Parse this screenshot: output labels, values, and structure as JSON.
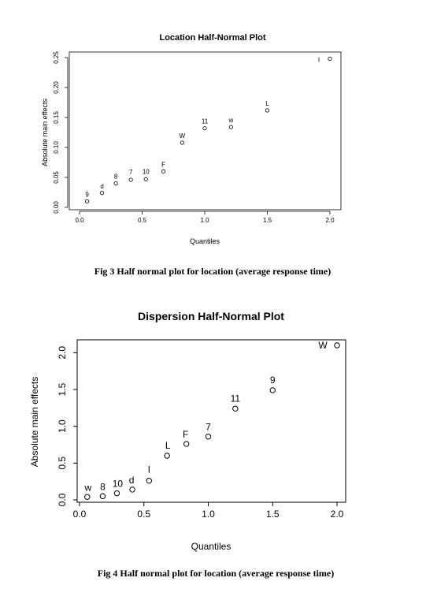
{
  "chart_data": [
    {
      "type": "scatter",
      "title": "Location Half-Normal Plot",
      "xlabel": "Quantiles",
      "ylabel": "Absolute main effects",
      "xlim": [
        0.0,
        2.0
      ],
      "ylim": [
        0.0,
        0.25
      ],
      "x_ticks": [
        "0.0",
        "0.5",
        "1.0",
        "1.5",
        "2.0"
      ],
      "y_ticks": [
        "0.00",
        "0.05",
        "0.10",
        "0.15",
        "0.20",
        "0.25"
      ],
      "grid": false,
      "points": [
        {
          "label": "9",
          "x": 0.06,
          "y": 0.01
        },
        {
          "label": "d",
          "x": 0.18,
          "y": 0.024
        },
        {
          "label": "8",
          "x": 0.29,
          "y": 0.04
        },
        {
          "label": "7",
          "x": 0.41,
          "y": 0.046
        },
        {
          "label": "10",
          "x": 0.53,
          "y": 0.047
        },
        {
          "label": "F",
          "x": 0.67,
          "y": 0.06
        },
        {
          "label": "W",
          "x": 0.82,
          "y": 0.108
        },
        {
          "label": "11",
          "x": 1.0,
          "y": 0.132
        },
        {
          "label": "w",
          "x": 1.21,
          "y": 0.134
        },
        {
          "label": "L",
          "x": 1.5,
          "y": 0.162
        },
        {
          "label": "I",
          "x": 2.0,
          "y": 0.248
        }
      ],
      "caption": "Fig 3 Half normal plot for location (average response time)"
    },
    {
      "type": "scatter",
      "title": "Dispersion Half-Normal Plot",
      "xlabel": "Quantiles",
      "ylabel": "Absolute main effects",
      "xlim": [
        0.0,
        2.0
      ],
      "ylim": [
        0.0,
        2.1
      ],
      "x_ticks": [
        "0.0",
        "0.5",
        "1.0",
        "1.5",
        "2.0"
      ],
      "y_ticks": [
        "0.0",
        "0.5",
        "1.0",
        "1.5",
        "2.0"
      ],
      "grid": false,
      "points": [
        {
          "label": "w",
          "x": 0.06,
          "y": 0.04
        },
        {
          "label": "8",
          "x": 0.18,
          "y": 0.05
        },
        {
          "label": "10",
          "x": 0.29,
          "y": 0.09
        },
        {
          "label": "d",
          "x": 0.41,
          "y": 0.14
        },
        {
          "label": "I",
          "x": 0.54,
          "y": 0.26
        },
        {
          "label": "L",
          "x": 0.68,
          "y": 0.6
        },
        {
          "label": "F",
          "x": 0.83,
          "y": 0.76
        },
        {
          "label": "7",
          "x": 1.0,
          "y": 0.86
        },
        {
          "label": "11",
          "x": 1.21,
          "y": 1.24
        },
        {
          "label": "9",
          "x": 1.5,
          "y": 1.49
        },
        {
          "label": "W",
          "x": 2.0,
          "y": 2.1
        }
      ],
      "caption": "Fig 4 Half normal plot for location (average response time)"
    }
  ]
}
